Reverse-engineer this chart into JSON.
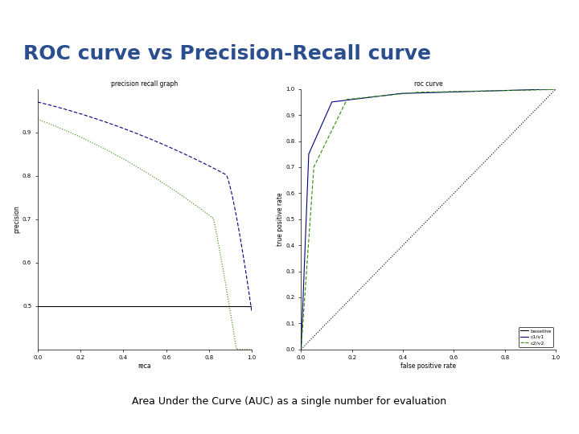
{
  "title": "ROC curve vs Precision-Recall curve",
  "subtitle": "Area Under the Curve (AUC) as a single number for evaluation",
  "title_color": "#2B4F8E",
  "header_bg": "#6B8DC2",
  "slide_bg": "#FFFFFF",
  "pr_title": "precision recall graph",
  "roc_title": "roc curve",
  "pr_xlabel": "reca",
  "pr_ylabel": "precision",
  "roc_xlabel": "false positive rate",
  "roc_ylabel": "true positive rate",
  "pr_xlim": [
    0,
    1
  ],
  "pr_ylim": [
    0.4,
    1.0
  ],
  "pr_yticks": [
    0.5,
    0.6,
    0.7,
    0.8,
    0.9
  ],
  "pr_xticks": [
    0.0,
    0.2,
    0.4,
    0.6,
    0.8,
    1.0
  ],
  "roc_xlim": [
    0,
    1
  ],
  "roc_ylim": [
    0,
    1.0
  ],
  "roc_yticks": [
    0.0,
    0.1,
    0.2,
    0.3,
    0.4,
    0.5,
    0.6,
    0.7,
    0.8,
    0.9,
    1.0
  ],
  "roc_xticks": [
    0.0,
    0.2,
    0.4,
    0.6,
    0.8,
    1.0
  ],
  "color_blue": "#000080",
  "color_green": "#2E8B00",
  "color_black": "#000000",
  "legend_labels": [
    "baseline",
    "c1/v1",
    "c2/v2"
  ]
}
